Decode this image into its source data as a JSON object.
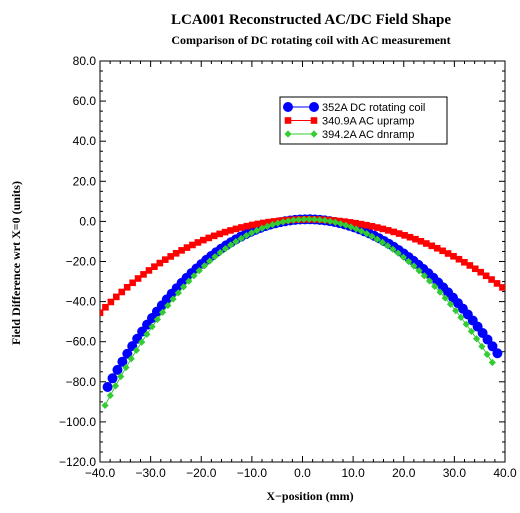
{
  "chart_data": {
    "type": "scatter",
    "title": "LCA001 Reconstructed AC/DC Field Shape",
    "subtitle": "Comparison of DC rotating coil with AC measurement",
    "xlabel": "X−position (mm)",
    "ylabel": "Field Difference wrt X=0 (units)",
    "xlim": [
      -40,
      40
    ],
    "ylim": [
      -120,
      80
    ],
    "x_ticks": [
      "−40.0",
      "−30.0",
      "−20.0",
      "−10.0",
      "0.0",
      "10.0",
      "20.0",
      "30.0",
      "40.0"
    ],
    "y_ticks": [
      "80.0",
      "60.0",
      "40.0",
      "20.0",
      "0.0",
      "−20.0",
      "−40.0",
      "−60.0",
      "−80.0",
      "−100.0",
      "−120.0"
    ],
    "grid": false,
    "legend_position": "top-right",
    "series": [
      {
        "name": "352A  DC rotating coil",
        "color": "#0000ff",
        "marker": "circle",
        "curve": "poly6",
        "coef": [
          1,
          0.1,
          -0.0487,
          8e-05,
          -1.36e-06
        ],
        "x_range": [
          -38.5,
          38.5
        ],
        "n_points": 80
      },
      {
        "name": "340.9A  AC upramp",
        "color": "#ff0000",
        "marker": "square",
        "curve": "poly6",
        "coef": [
          1,
          0.05,
          -0.0225,
          6e-05,
          -1.85e-06
        ],
        "x_range": [
          -40,
          39.5
        ],
        "n_points": 75
      },
      {
        "name": "394.2A  AC dnramp",
        "color": "#33cc33",
        "marker": "diamond",
        "curve": "poly6",
        "coef": [
          1,
          0.12,
          -0.054,
          5e-05,
          -1.3e-06
        ],
        "x_range": [
          -39,
          37.5
        ],
        "n_points": 75
      }
    ]
  }
}
